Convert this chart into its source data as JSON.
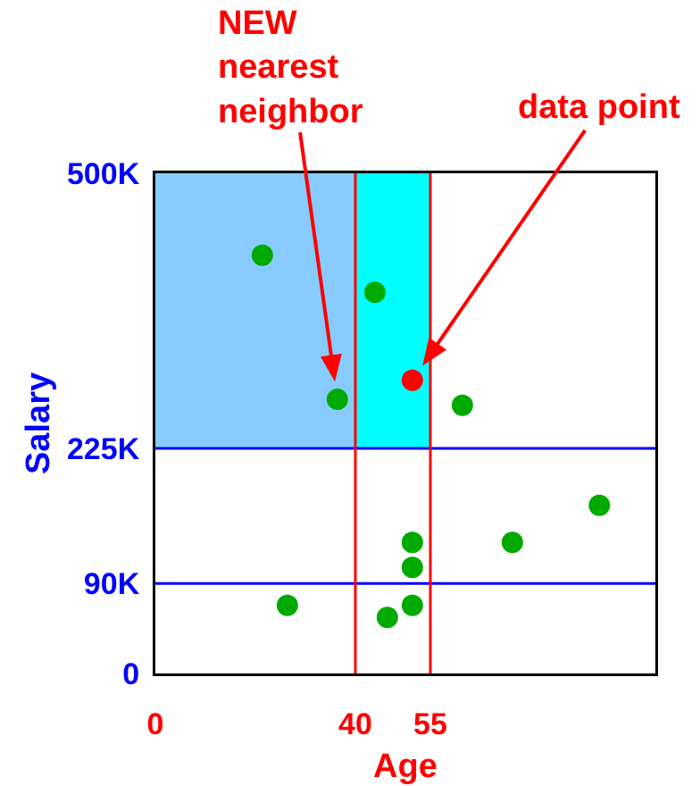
{
  "chart_data": {
    "type": "scatter",
    "xlabel": "Age",
    "ylabel": "Salary",
    "xlim": [
      0,
      100
    ],
    "ylim": [
      0,
      500
    ],
    "xticks": [
      0,
      40,
      55
    ],
    "yticks": [
      0,
      {
        "value": 90,
        "label": "90K"
      },
      {
        "value": 225,
        "label": "225K"
      },
      {
        "value": 500,
        "label": "500K"
      }
    ],
    "marker": "circle",
    "series": [
      {
        "color": "#00aa00",
        "x": [
          21.4,
          43.9,
          36.4,
          61.4,
          88.8,
          71.4,
          51.4,
          51.4,
          51.4,
          46.4,
          26.4
        ],
        "values": [
          418,
          381,
          274,
          268,
          168,
          131,
          131,
          106,
          68,
          56,
          68
        ]
      },
      {
        "color": "#ff0000",
        "x": [
          51.4
        ],
        "values": [
          293
        ]
      }
    ],
    "ref_lines": [
      {
        "axis": "y",
        "value": 225,
        "color": "#0000ff"
      },
      {
        "axis": "y",
        "value": 90,
        "color": "#0000ff"
      },
      {
        "axis": "x",
        "value": 40,
        "color": "#ff0000"
      },
      {
        "axis": "x",
        "value": 55,
        "color": "#ff0000"
      }
    ],
    "bands": [
      {
        "axis": "x",
        "from": 0,
        "to": 40,
        "color": "#88ccff"
      },
      {
        "axis": "x",
        "from": 40,
        "to": 55,
        "color": "#00ffff"
      }
    ],
    "annotations": [
      {
        "text": "NEW\nnearest\nneighbor",
        "x": 36.4,
        "y": 274
      },
      {
        "text": "data point",
        "x": 51.4,
        "y": 293
      }
    ]
  }
}
